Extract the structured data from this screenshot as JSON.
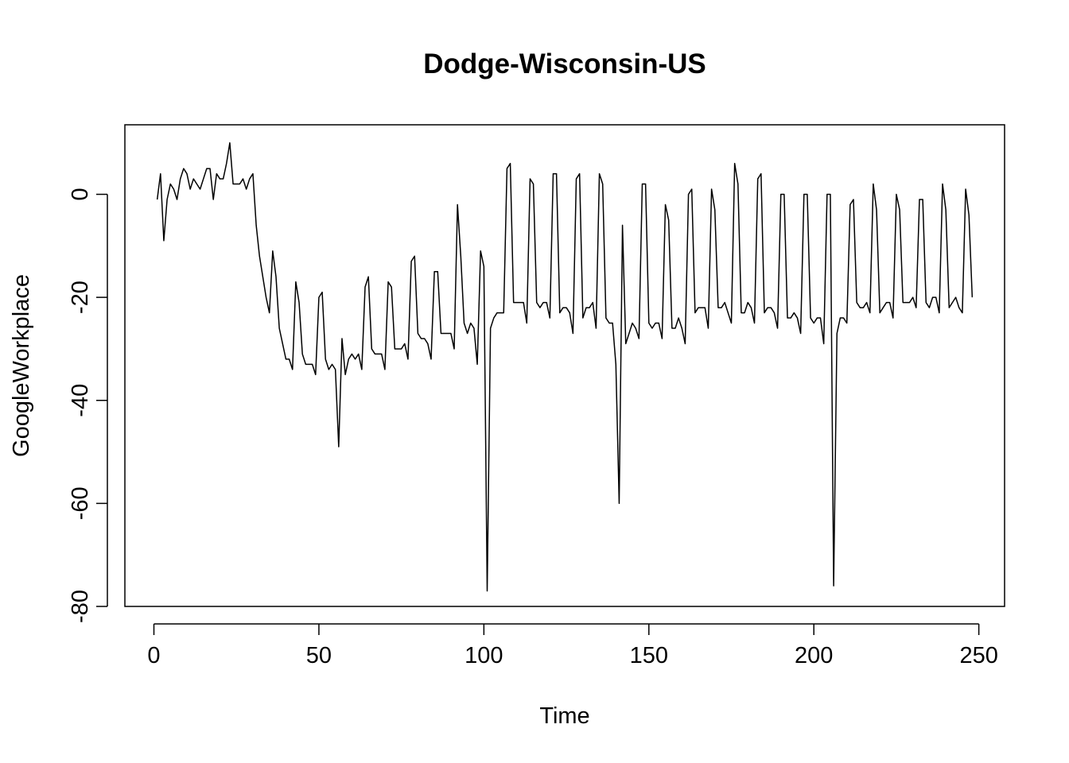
{
  "chart_data": {
    "type": "line",
    "title": "Dodge-Wisconsin-US",
    "xlabel": "Time",
    "ylabel": "GoogleWorkplace",
    "xlim": [
      -8.8,
      257.8
    ],
    "ylim": [
      -80,
      13.5
    ],
    "xticks": [
      0,
      50,
      100,
      150,
      200,
      250
    ],
    "yticks": [
      -80,
      -60,
      -40,
      -20,
      0
    ],
    "grid": false,
    "legend": "none",
    "series": [
      {
        "color": "#000000",
        "x_start": 1,
        "x_step": 1,
        "values": [
          -1,
          4,
          -9,
          -1,
          2,
          1,
          -1,
          3,
          5,
          4,
          1,
          3,
          2,
          1,
          3,
          5,
          5,
          -1,
          4,
          3,
          3,
          6,
          10,
          2,
          2,
          2,
          3,
          1,
          3,
          4,
          -6,
          -12,
          -16,
          -20,
          -23,
          -11,
          -16,
          -26,
          -29,
          -32,
          -32,
          -34,
          -17,
          -21,
          -31,
          -33,
          -33,
          -33,
          -35,
          -20,
          -19,
          -32,
          -34,
          -33,
          -34,
          -49,
          -28,
          -35,
          -32,
          -31,
          -32,
          -31,
          -34,
          -18,
          -16,
          -30,
          -31,
          -31,
          -31,
          -34,
          -17,
          -18,
          -30,
          -30,
          -30,
          -29,
          -32,
          -13,
          -12,
          -27,
          -28,
          -28,
          -29,
          -32,
          -15,
          -15,
          -27,
          -27,
          -27,
          -27,
          -30,
          -2,
          -12,
          -25,
          -27,
          -25,
          -26,
          -33,
          -11,
          -14,
          -77,
          -26,
          -24,
          -23,
          -23,
          -23,
          5,
          6,
          -21,
          -21,
          -21,
          -21,
          -25,
          3,
          2,
          -21,
          -22,
          -21,
          -21,
          -24,
          4,
          4,
          -23,
          -22,
          -22,
          -23,
          -27,
          3,
          4,
          -24,
          -22,
          -22,
          -21,
          -26,
          4,
          2,
          -24,
          -25,
          -25,
          -33,
          -60,
          -6,
          -29,
          -27,
          -25,
          -26,
          -28,
          2,
          2,
          -25,
          -26,
          -25,
          -25,
          -28,
          -2,
          -5,
          -26,
          -26,
          -24,
          -26,
          -29,
          0,
          1,
          -23,
          -22,
          -22,
          -22,
          -26,
          1,
          -3,
          -22,
          -22,
          -21,
          -23,
          -25,
          6,
          2,
          -23,
          -23,
          -21,
          -22,
          -25,
          3,
          4,
          -23,
          -22,
          -22,
          -23,
          -26,
          0,
          0,
          -24,
          -24,
          -23,
          -24,
          -27,
          0,
          0,
          -24,
          -25,
          -24,
          -24,
          -29,
          0,
          0,
          -76,
          -27,
          -24,
          -24,
          -25,
          -2,
          -1,
          -21,
          -22,
          -22,
          -21,
          -23,
          2,
          -3,
          -23,
          -22,
          -21,
          -21,
          -24,
          0,
          -3,
          -21,
          -21,
          -21,
          -20,
          -22,
          -1,
          -1,
          -21,
          -22,
          -20,
          -20,
          -23,
          2,
          -3,
          -22,
          -21,
          -20,
          -22,
          -23,
          1,
          -4,
          -20
        ]
      }
    ]
  }
}
